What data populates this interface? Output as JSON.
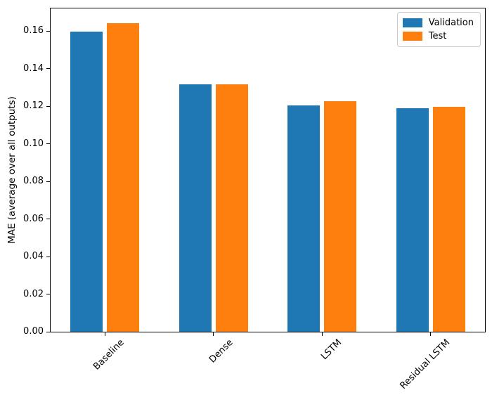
{
  "figure": {
    "background": "#ffffff",
    "axis_color": "#000000"
  },
  "chart_data": {
    "type": "bar",
    "title": "",
    "xlabel": "",
    "ylabel": "MAE (average over all outputs)",
    "categories": [
      "Baseline",
      "Dense",
      "LSTM",
      "Residual LSTM"
    ],
    "series": [
      {
        "name": "Validation",
        "color": "#1f77b4",
        "values": [
          0.1595,
          0.1315,
          0.1205,
          0.119
        ]
      },
      {
        "name": "Test",
        "color": "#ff7f0e",
        "values": [
          0.164,
          0.1315,
          0.1225,
          0.1195
        ]
      }
    ],
    "ylim": [
      0,
      0.172
    ],
    "ytick_values": [
      0.0,
      0.02,
      0.04,
      0.06,
      0.08,
      0.1,
      0.12,
      0.14,
      0.16
    ],
    "ytick_labels": [
      "0.00",
      "0.02",
      "0.04",
      "0.06",
      "0.08",
      "0.10",
      "0.12",
      "0.14",
      "0.16"
    ],
    "xtick_rotation": 45,
    "grid": false,
    "legend": {
      "position": "upper right",
      "entries": [
        "Validation",
        "Test"
      ]
    }
  }
}
